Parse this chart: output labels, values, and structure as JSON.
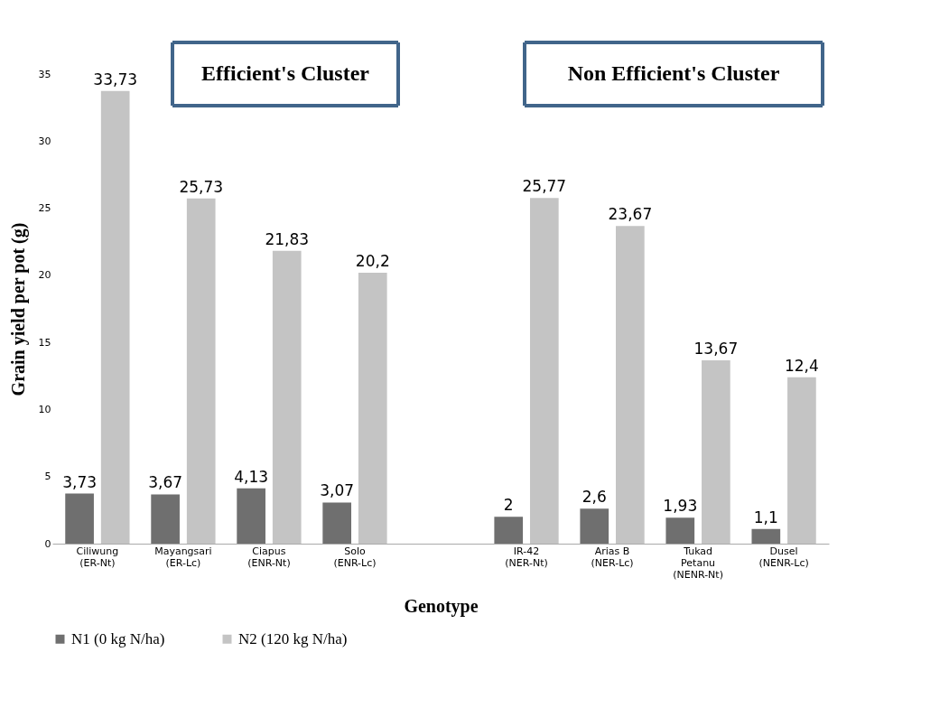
{
  "chart_data": {
    "type": "bar",
    "categories": [
      "Ciliwung\n(ER-Nt)",
      "Mayangsari\n(ER-Lc)",
      "Ciapus\n(ENR-Nt)",
      "Solo\n(ENR-Lc)",
      null,
      "IR-42\n(NER-Nt)",
      "Arias B\n(NER-Lc)",
      "Tukad\nPetanu\n(NENR-Nt)",
      "Dusel\n(NENR-Lc)"
    ],
    "series": [
      {
        "name": "N1 (0 kg N/ha)",
        "color": "#6f6f6f",
        "values": [
          3.73,
          3.67,
          4.13,
          3.07,
          null,
          2,
          2.6,
          1.93,
          1.1
        ],
        "value_labels": [
          "3,73",
          "3,67",
          "4,13",
          "3,07",
          null,
          "2",
          "2,6",
          "1,93",
          "1,1"
        ]
      },
      {
        "name": "N2 (120 kg N/ha)",
        "color": "#c4c4c4",
        "values": [
          33.73,
          25.73,
          21.83,
          20.2,
          null,
          25.77,
          23.67,
          13.67,
          12.4
        ],
        "value_labels": [
          "33,73",
          "25,73",
          "21,83",
          "20,2",
          null,
          "25,77",
          "23,67",
          "13,67",
          "12,4"
        ]
      }
    ],
    "xlabel": "Genotype",
    "ylabel": "Grain yield per pot (g)",
    "ylim": [
      0,
      35
    ],
    "yticks": [
      0,
      5,
      10,
      15,
      20,
      25,
      30,
      35
    ],
    "grid": false,
    "legend": "bottom",
    "annotations": [
      "Efficient's Cluster",
      "Non Efficient's Cluster"
    ]
  }
}
